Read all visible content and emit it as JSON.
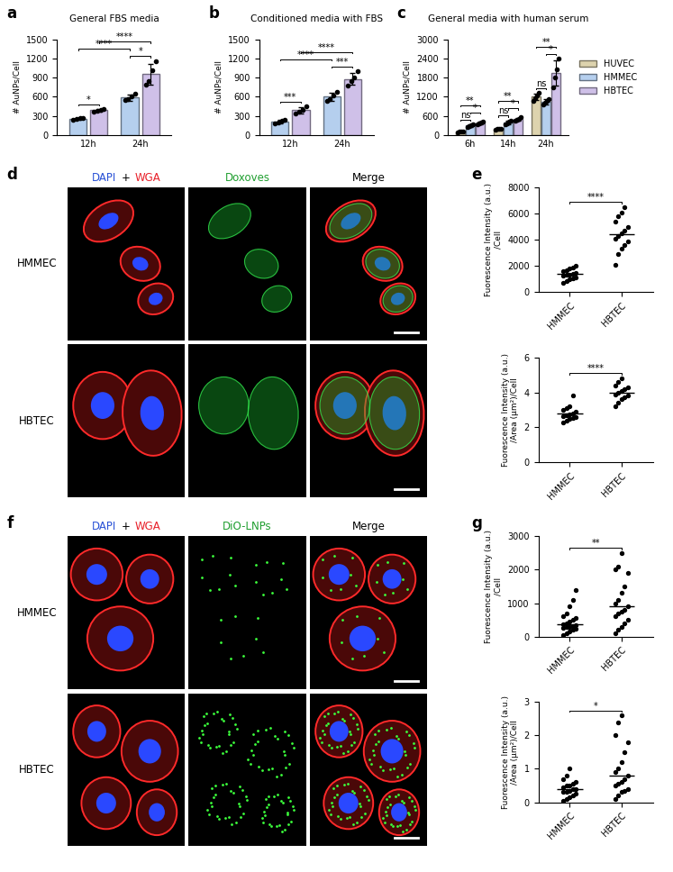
{
  "chart_data": [
    {
      "type": "bar",
      "panel_label": "a",
      "title": "General FBS media",
      "ylabel": "# AuNPs/Cell",
      "categories": [
        "12h",
        "24h"
      ],
      "ylim": [
        0,
        1500
      ],
      "yticks": [
        0,
        300,
        600,
        900,
        1200,
        1500
      ],
      "series": [
        {
          "color": "#b5cfee",
          "values": [
            255,
            590
          ],
          "errors": [
            20,
            50
          ],
          "points": [
            [
              235,
              250,
              265,
              275
            ],
            [
              545,
              560,
              610,
              650
            ]
          ]
        },
        {
          "color": "#cfc0e8",
          "values": [
            390,
            955
          ],
          "errors": [
            20,
            160
          ],
          "points": [
            [
              370,
              385,
              400,
              410
            ],
            [
              790,
              850,
              1020,
              1160
            ]
          ]
        }
      ],
      "annotations": [
        {
          "text": "*",
          "from": [
            "12h",
            0
          ],
          "to": [
            "12h",
            1
          ]
        },
        {
          "text": "*",
          "from": [
            "24h",
            0
          ],
          "to": [
            "24h",
            1
          ]
        },
        {
          "text": "****",
          "from": [
            "12h",
            0
          ],
          "to": [
            "24h",
            0
          ]
        },
        {
          "text": "****",
          "from": [
            "12h",
            1
          ],
          "to": [
            "24h",
            1
          ]
        }
      ]
    },
    {
      "type": "bar",
      "panel_label": "b",
      "title": "Conditioned media with FBS",
      "ylabel": "# AuNPs/Cell",
      "categories": [
        "12h",
        "24h"
      ],
      "ylim": [
        0,
        1500
      ],
      "yticks": [
        0,
        300,
        600,
        900,
        1200,
        1500
      ],
      "series": [
        {
          "color": "#b5cfee",
          "values": [
            215,
            600
          ],
          "errors": [
            25,
            60
          ],
          "points": [
            [
              190,
              200,
              225,
              245
            ],
            [
              540,
              570,
              620,
              680
            ]
          ]
        },
        {
          "color": "#cfc0e8",
          "values": [
            390,
            880
          ],
          "errors": [
            50,
            90
          ],
          "points": [
            [
              340,
              370,
              400,
              450
            ],
            [
              780,
              840,
              900,
              1000
            ]
          ]
        }
      ],
      "annotations": [
        {
          "text": "***",
          "from": [
            "12h",
            0
          ],
          "to": [
            "12h",
            1
          ]
        },
        {
          "text": "***",
          "from": [
            "24h",
            0
          ],
          "to": [
            "24h",
            1
          ]
        },
        {
          "text": "****",
          "from": [
            "12h",
            0
          ],
          "to": [
            "24h",
            0
          ]
        },
        {
          "text": "****",
          "from": [
            "12h",
            1
          ],
          "to": [
            "24h",
            1
          ]
        }
      ]
    },
    {
      "type": "bar",
      "panel_label": "c",
      "title": "General media with human serum",
      "ylabel": "# AuNPs/Cell",
      "categories": [
        "6h",
        "14h",
        "24h"
      ],
      "ylim": [
        0,
        3000
      ],
      "yticks": [
        0,
        600,
        1200,
        1800,
        2400,
        3000
      ],
      "legend": "right",
      "series": [
        {
          "name": "HUVEC",
          "color": "#ddd3ae",
          "values": [
            110,
            190,
            1200
          ],
          "errors": [
            15,
            20,
            100
          ],
          "points": [
            [
              95,
              105,
              115,
              125
            ],
            [
              170,
              185,
              195,
              210
            ],
            [
              1080,
              1150,
              1230,
              1330
            ]
          ]
        },
        {
          "name": "HMMEC",
          "color": "#b5cfee",
          "values": [
            300,
            400,
            1050
          ],
          "errors": [
            40,
            60,
            80
          ],
          "points": [
            [
              260,
              290,
              310,
              340
            ],
            [
              340,
              380,
              420,
              460
            ],
            [
              960,
              1020,
              1080,
              1140
            ]
          ]
        },
        {
          "name": "HBTEC",
          "color": "#cfc0e8",
          "values": [
            380,
            500,
            1950
          ],
          "errors": [
            40,
            50,
            400
          ],
          "points": [
            [
              340,
              370,
              390,
              420
            ],
            [
              440,
              480,
              520,
              560
            ],
            [
              1500,
              1800,
              2050,
              2400
            ]
          ]
        }
      ],
      "annotations": [
        {
          "text": "ns",
          "from": [
            "6h",
            0
          ],
          "to": [
            "6h",
            1
          ]
        },
        {
          "text": "*",
          "from": [
            "6h",
            1
          ],
          "to": [
            "6h",
            2
          ]
        },
        {
          "text": "**",
          "from": [
            "6h",
            0
          ],
          "to": [
            "6h",
            2
          ]
        },
        {
          "text": "ns",
          "from": [
            "14h",
            0
          ],
          "to": [
            "14h",
            1
          ]
        },
        {
          "text": "*",
          "from": [
            "14h",
            1
          ],
          "to": [
            "14h",
            2
          ]
        },
        {
          "text": "**",
          "from": [
            "14h",
            0
          ],
          "to": [
            "14h",
            2
          ]
        },
        {
          "text": "ns",
          "from": [
            "24h",
            0
          ],
          "to": [
            "24h",
            1
          ]
        },
        {
          "text": "*",
          "from": [
            "24h",
            1
          ],
          "to": [
            "24h",
            2
          ]
        },
        {
          "text": "**",
          "from": [
            "24h",
            0
          ],
          "to": [
            "24h",
            2
          ]
        }
      ]
    },
    {
      "type": "dot",
      "panel_label": "e",
      "ylabel": "Fuorescence Intensity (a.u.)\n/Cell",
      "categories": [
        "HMMEC",
        "HBTEC"
      ],
      "ylim": [
        0,
        8000
      ],
      "yticks": [
        0,
        2000,
        4000,
        6000,
        8000
      ],
      "color": "#000000",
      "values": [
        1400,
        4400
      ],
      "points": [
        [
          700,
          850,
          950,
          1050,
          1150,
          1250,
          1300,
          1350,
          1400,
          1500,
          1600,
          1700,
          1800,
          1900,
          2000
        ],
        [
          2100,
          2900,
          3300,
          3600,
          3900,
          4100,
          4300,
          4500,
          4700,
          5000,
          5400,
          5800,
          6100,
          6500
        ]
      ],
      "annotations": [
        {
          "text": "****",
          "from": "HMMEC",
          "to": "HBTEC"
        }
      ]
    },
    {
      "type": "dot",
      "ylabel": "Fuorescence Intensity (a.u.)\n/Area (µm²)/Cell",
      "categories": [
        "HMMEC",
        "HBTEC"
      ],
      "ylim": [
        0,
        6
      ],
      "yticks": [
        0,
        2,
        4,
        6
      ],
      "color": "#000000",
      "values": [
        2.8,
        4.0
      ],
      "points": [
        [
          2.3,
          2.4,
          2.5,
          2.55,
          2.6,
          2.65,
          2.7,
          2.75,
          2.8,
          2.9,
          3.0,
          3.1,
          3.2,
          3.8
        ],
        [
          3.2,
          3.4,
          3.6,
          3.7,
          3.8,
          3.9,
          4.0,
          4.1,
          4.2,
          4.3,
          4.4,
          4.6,
          4.8
        ]
      ],
      "annotations": [
        {
          "text": "****",
          "from": "HMMEC",
          "to": "HBTEC"
        }
      ]
    },
    {
      "type": "dot",
      "panel_label": "g",
      "ylabel": "Fuorescence Intensity (a.u.)\n/Cell",
      "categories": [
        "HMMEC",
        "HBTEC"
      ],
      "ylim": [
        0,
        3000
      ],
      "yticks": [
        0,
        1000,
        2000,
        3000
      ],
      "color": "#000000",
      "values": [
        380,
        900
      ],
      "points": [
        [
          50,
          100,
          150,
          200,
          220,
          250,
          280,
          300,
          320,
          350,
          380,
          400,
          450,
          500,
          550,
          600,
          700,
          900,
          1100,
          1400
        ],
        [
          100,
          200,
          300,
          400,
          500,
          600,
          700,
          750,
          800,
          900,
          1000,
          1100,
          1300,
          1500,
          1900,
          2000,
          2100,
          2500
        ]
      ],
      "annotations": [
        {
          "text": "**",
          "from": "HMMEC",
          "to": "HBTEC"
        }
      ]
    },
    {
      "type": "dot",
      "ylabel": "Fuorescence Intensity (a.u.)\n/Area (µm²)/Cell",
      "categories": [
        "HMMEC",
        "HBTEC"
      ],
      "ylim": [
        0,
        3
      ],
      "yticks": [
        0,
        1,
        2,
        3
      ],
      "color": "#000000",
      "values": [
        0.4,
        0.8
      ],
      "points": [
        [
          0.05,
          0.1,
          0.15,
          0.2,
          0.25,
          0.3,
          0.3,
          0.35,
          0.4,
          0.4,
          0.45,
          0.5,
          0.5,
          0.55,
          0.6,
          0.7,
          0.8,
          1.0
        ],
        [
          0.1,
          0.2,
          0.3,
          0.35,
          0.4,
          0.5,
          0.55,
          0.6,
          0.7,
          0.8,
          0.9,
          1.0,
          1.2,
          1.5,
          1.8,
          2.0,
          2.4,
          2.6
        ]
      ],
      "annotations": [
        {
          "text": "*",
          "from": "HMMEC",
          "to": "HBTEC"
        }
      ]
    }
  ],
  "image_panels": [
    {
      "panel_label": "d",
      "rows": [
        "HMMEC",
        "HBTEC"
      ],
      "columns": [
        [
          {
            "text": "DAPI",
            "color": "#2a52d6"
          },
          {
            "text": "+",
            "color": "#000000"
          },
          {
            "text": "WGA",
            "color": "#e8202a"
          }
        ],
        [
          {
            "text": "Doxoves",
            "color": "#1f9e2f"
          }
        ],
        [
          {
            "text": "Merge",
            "color": "#000000"
          }
        ]
      ]
    },
    {
      "panel_label": "f",
      "rows": [
        "HMMEC",
        "HBTEC"
      ],
      "columns": [
        [
          {
            "text": "DAPI",
            "color": "#2a52d6"
          },
          {
            "text": "+",
            "color": "#000000"
          },
          {
            "text": "WGA",
            "color": "#e8202a"
          }
        ],
        [
          {
            "text": "DiO-LNPs",
            "color": "#1f9e2f"
          }
        ],
        [
          {
            "text": "Merge",
            "color": "#000000"
          }
        ]
      ]
    }
  ]
}
